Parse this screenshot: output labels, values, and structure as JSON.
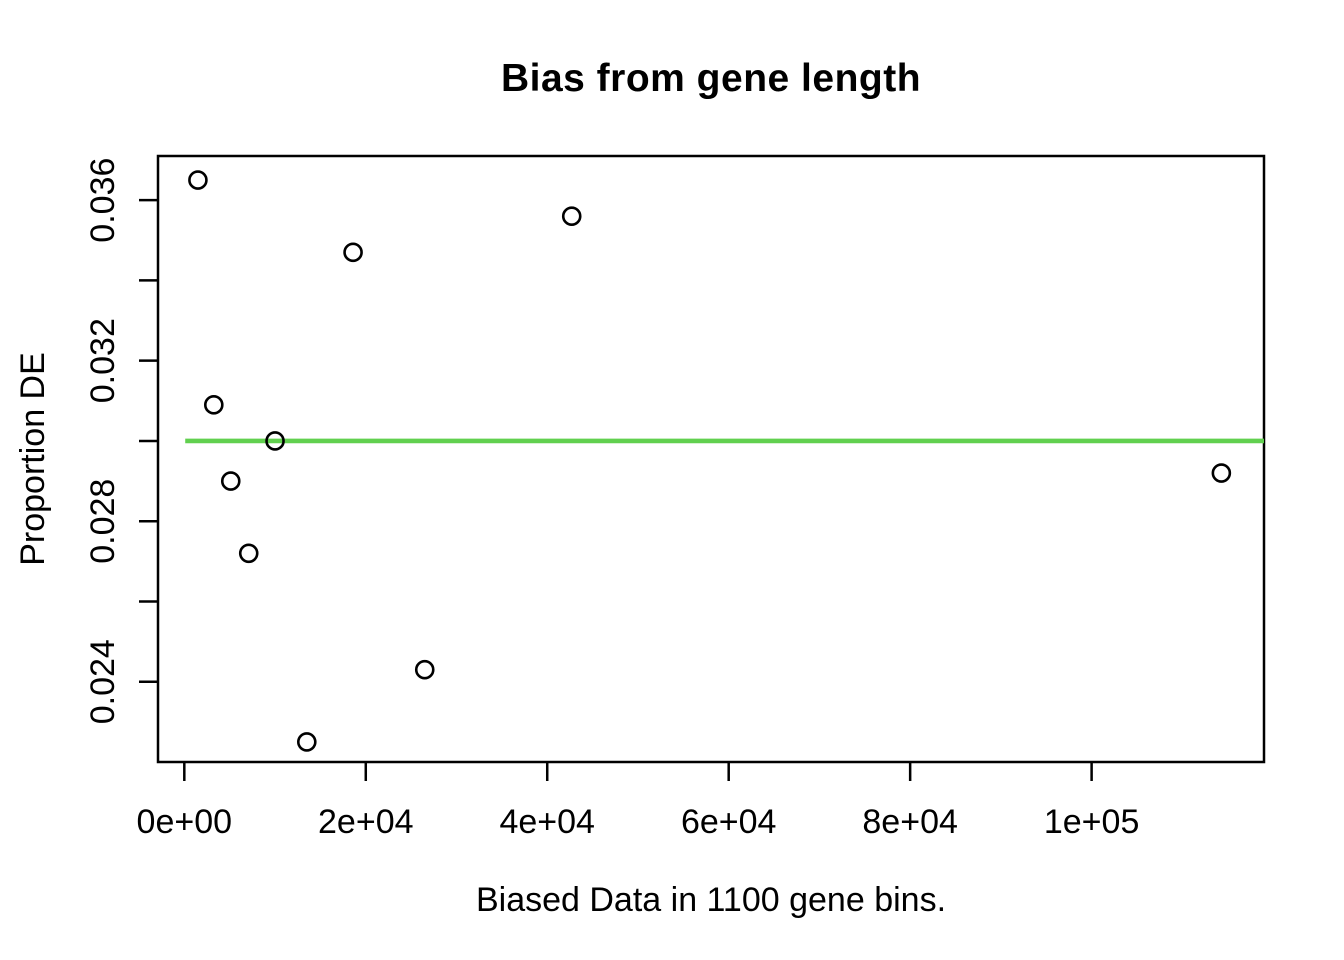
{
  "chart_data": {
    "type": "scatter",
    "title": "Bias from gene length",
    "xlabel": "Biased Data in 1100 gene bins.",
    "ylabel": "Proportion DE",
    "points": [
      {
        "x": 1500,
        "y": 0.0365
      },
      {
        "x": 3250,
        "y": 0.0309
      },
      {
        "x": 5120,
        "y": 0.029
      },
      {
        "x": 7100,
        "y": 0.0272
      },
      {
        "x": 10000,
        "y": 0.03
      },
      {
        "x": 13500,
        "y": 0.0225
      },
      {
        "x": 18600,
        "y": 0.0347
      },
      {
        "x": 26500,
        "y": 0.0243
      },
      {
        "x": 42700,
        "y": 0.0356
      },
      {
        "x": 114300,
        "y": 0.0292
      }
    ],
    "hline": {
      "y": 0.03,
      "x_start": 100,
      "x_end": 119000,
      "color": "#61D04F",
      "width": 4.6
    },
    "x_ticks": {
      "values": [
        0,
        20000,
        40000,
        60000,
        80000,
        100000
      ],
      "labels": [
        "0e+00",
        "2e+04",
        "4e+04",
        "6e+04",
        "8e+04",
        "1e+05"
      ]
    },
    "y_ticks": {
      "values": [
        0.024,
        0.026,
        0.028,
        0.03,
        0.032,
        0.034,
        0.036
      ],
      "labels": [
        "0.024",
        "",
        "0.028",
        "",
        "0.032",
        "",
        "0.036"
      ]
    },
    "xlim": [
      -2900,
      119000
    ],
    "ylim": [
      0.022,
      0.0371
    ],
    "grid": false,
    "legend": null,
    "point_style": "open-circle",
    "marker_color": "#000000",
    "axis_color": "#000000",
    "background_color": "#ffffff"
  }
}
